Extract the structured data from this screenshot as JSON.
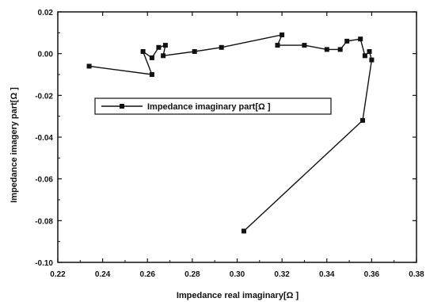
{
  "chart_data": {
    "type": "line",
    "title": "",
    "xlabel": "Impedance real imaginary[Ω  ]",
    "ylabel": "Impedance imagery part[Ω  ]",
    "xlim": [
      0.22,
      0.38
    ],
    "ylim": [
      -0.1,
      0.02
    ],
    "xticks": [
      "0.22",
      "0.24",
      "0.26",
      "0.28",
      "0.30",
      "0.32",
      "0.34",
      "0.36",
      "0.38"
    ],
    "yticks": [
      "0.02",
      "0.00",
      "-0.02",
      "-0.04",
      "-0.06",
      "-0.08",
      "-0.10"
    ],
    "legend_position": "upper-left",
    "grid": false,
    "series": [
      {
        "name": "Impedance imaginary part[Ω  ]",
        "color": "#111111",
        "marker": "square",
        "points": [
          {
            "x": 0.234,
            "y": -0.006
          },
          {
            "x": 0.262,
            "y": -0.01
          },
          {
            "x": 0.258,
            "y": 0.001
          },
          {
            "x": 0.262,
            "y": -0.002
          },
          {
            "x": 0.265,
            "y": 0.003
          },
          {
            "x": 0.268,
            "y": 0.004
          },
          {
            "x": 0.267,
            "y": -0.001
          },
          {
            "x": 0.281,
            "y": 0.001
          },
          {
            "x": 0.293,
            "y": 0.003
          },
          {
            "x": 0.32,
            "y": 0.009
          },
          {
            "x": 0.318,
            "y": 0.004
          },
          {
            "x": 0.33,
            "y": 0.004
          },
          {
            "x": 0.34,
            "y": 0.002
          },
          {
            "x": 0.346,
            "y": 0.002
          },
          {
            "x": 0.349,
            "y": 0.006
          },
          {
            "x": 0.355,
            "y": 0.007
          },
          {
            "x": 0.357,
            "y": -0.001
          },
          {
            "x": 0.359,
            "y": 0.001
          },
          {
            "x": 0.36,
            "y": -0.003
          },
          {
            "x": 0.356,
            "y": -0.032
          },
          {
            "x": 0.303,
            "y": -0.085
          }
        ]
      }
    ]
  }
}
